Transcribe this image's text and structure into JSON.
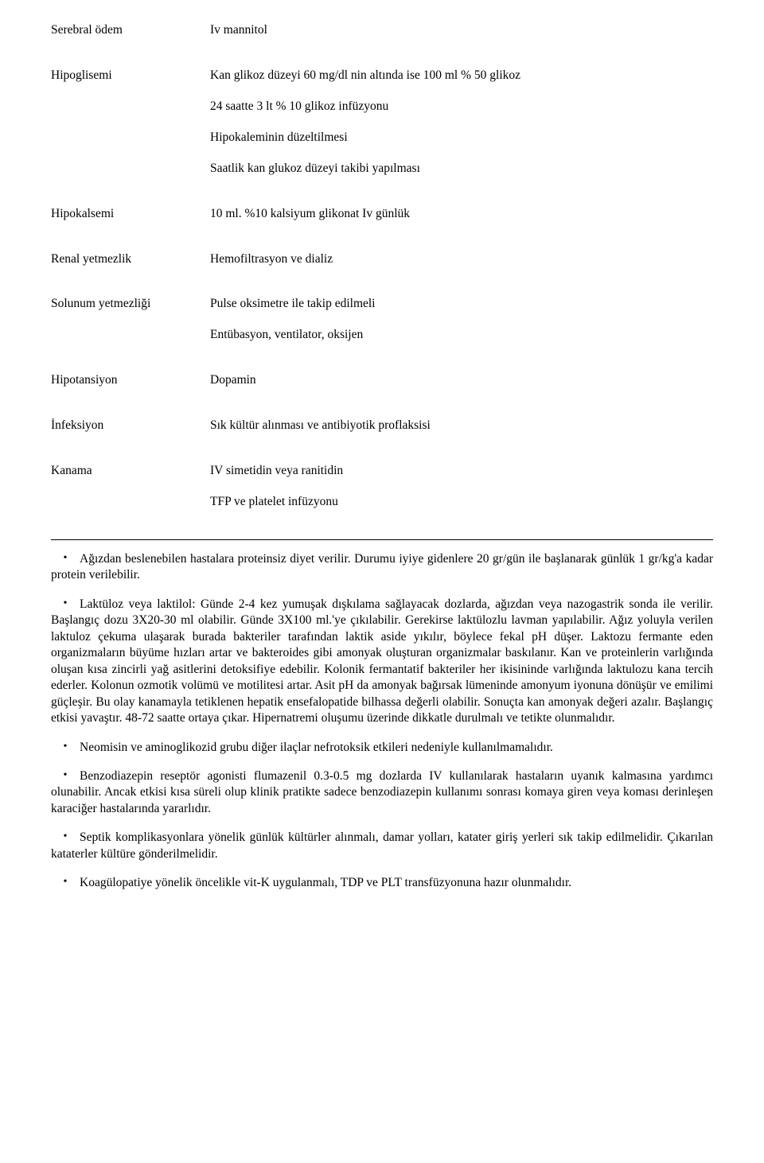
{
  "rows": [
    {
      "label": "Serebral ödem",
      "lines": [
        "Iv mannitol"
      ]
    },
    {
      "label": "Hipoglisemi",
      "lines": [
        "Kan glikoz düzeyi 60 mg/dl nin altında ise 100 ml % 50 glikoz",
        "24 saatte 3 lt % 10 glikoz infüzyonu",
        "Hipokaleminin düzeltilmesi",
        "Saatlik kan glukoz düzeyi takibi yapılması"
      ]
    },
    {
      "label": "Hipokalsemi",
      "lines": [
        "10 ml. %10 kalsiyum glikonat Iv günlük"
      ]
    },
    {
      "label": "Renal yetmezlik",
      "lines": [
        "Hemofiltrasyon ve dializ"
      ]
    },
    {
      "label": "Solunum yetmezliği",
      "lines": [
        "Pulse oksimetre ile takip edilmeli",
        "Entübasyon, ventilator, oksijen"
      ]
    },
    {
      "label": "Hipotansiyon",
      "lines": [
        "Dopamin"
      ]
    },
    {
      "label": "İnfeksiyon",
      "lines": [
        "Sık kültür alınması ve antibiyotik proflaksisi"
      ]
    },
    {
      "label": "Kanama",
      "lines": [
        "IV simetidin veya ranitidin",
        "TFP ve platelet infüzyonu"
      ]
    }
  ],
  "bullets": [
    "Ağızdan beslenebilen hastalara proteinsiz diyet verilir. Durumu iyiye gidenlere 20 gr/gün ile başlanarak günlük 1 gr/kg'a kadar protein verilebilir.",
    "Laktüloz veya laktilol: Günde 2-4 kez yumuşak dışkılama sağlayacak dozlarda, ağızdan veya nazogastrik sonda ile verilir. Başlangıç dozu 3X20-30 ml olabilir. Günde 3X100 ml.'ye çıkılabilir. Gerekirse laktülozlu lavman yapılabilir. Ağız yoluyla verilen laktuloz çekuma ulaşarak burada bakteriler tarafından laktik aside yıkılır, böylece fekal pH düşer. Laktozu fermante eden organizmaların büyüme hızları artar ve bakteroides gibi amonyak oluşturan organizmalar baskılanır. Kan ve proteinlerin varlığında oluşan kısa zincirli yağ asitlerini detoksifiye edebilir. Kolonik fermantatif bakteriler her ikisininde varlığında laktulozu kana tercih ederler. Kolonun ozmotik volümü ve motilitesi artar. Asit pH da amonyak bağırsak lümeninde amonyum iyonuna dönüşür ve emilimi güçleşir. Bu olay kanamayla tetiklenen hepatik ensefalopatide bilhassa değerli olabilir. Sonuçta kan amonyak değeri azalır. Başlangıç etkisi yavaştır. 48-72 saatte ortaya çıkar. Hipernatremi oluşumu üzerinde dikkatle durulmalı ve tetikte olunmalıdır.",
    "Neomisin ve aminoglikozid grubu diğer ilaçlar nefrotoksik etkileri nedeniyle kullanılmamalıdır.",
    "Benzodiazepin reseptör agonisti flumazenil 0.3-0.5 mg dozlarda IV kullanılarak hastaların uyanık kalmasına yardımcı olunabilir. Ancak etkisi kısa süreli olup klinik pratikte sadece benzodiazepin kullanımı sonrası komaya giren veya koması derinleşen karaciğer hastalarında yararlıdır.",
    "Septik komplikasyonlara yönelik günlük kültürler alınmalı, damar yolları, katater giriş yerleri sık takip edilmelidir. Çıkarılan kataterler kültüre gönderilmelidir.",
    "Koagülopatiye yönelik öncelikle vit-K uygulanmalı, TDP ve PLT transfüzyonuna hazır olunmalıdır."
  ]
}
